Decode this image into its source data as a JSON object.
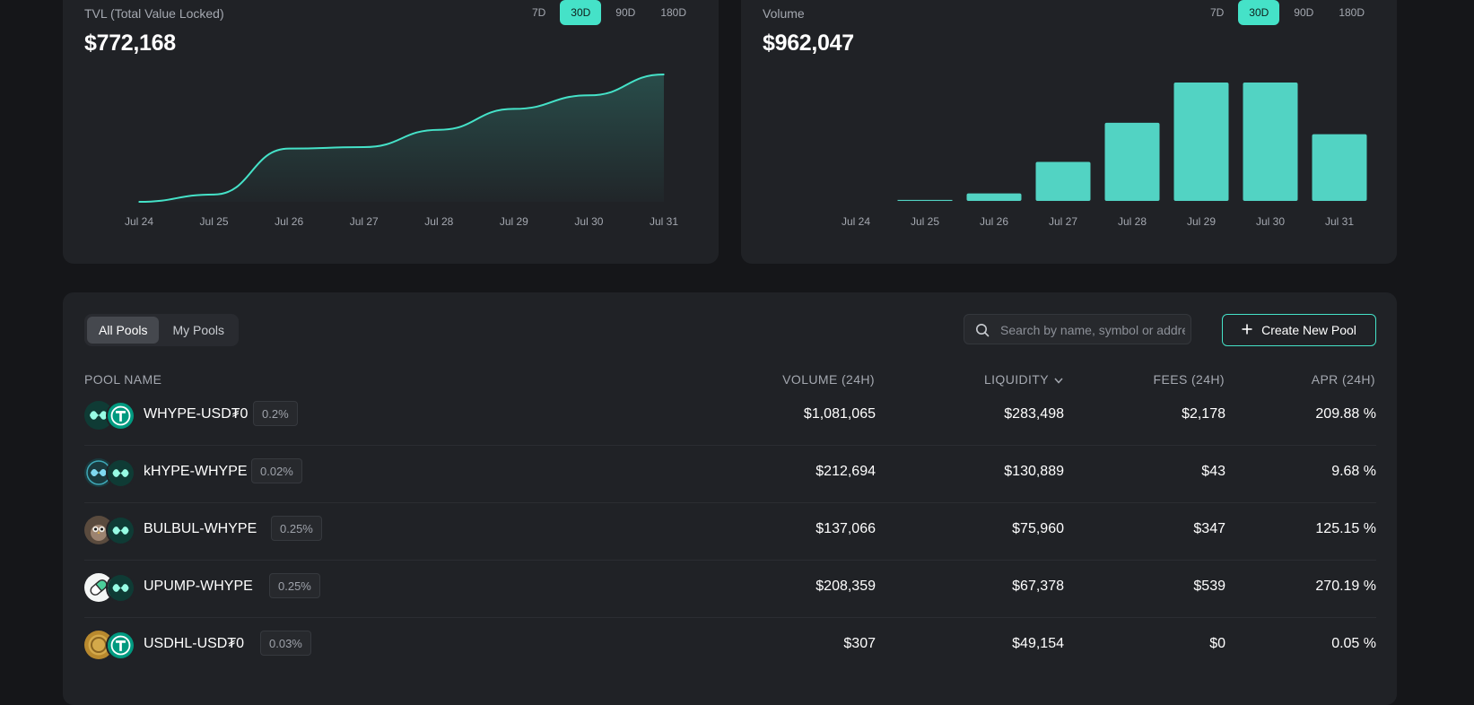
{
  "range_options": [
    "7D",
    "30D",
    "90D",
    "180D"
  ],
  "tvl": {
    "title": "TVL (Total Value Locked)",
    "value": "$772,168",
    "selected_range": "30D"
  },
  "volume": {
    "title": "Volume",
    "value": "$962,047",
    "selected_range": "30D"
  },
  "chart_data": [
    {
      "type": "area",
      "title": "TVL (Total Value Locked)",
      "x": [
        "Jul 24",
        "Jul 25",
        "Jul 26",
        "Jul 27",
        "Jul 28",
        "Jul 29",
        "Jul 30",
        "Jul 31"
      ],
      "y": [
        0,
        35000,
        255000,
        262000,
        345000,
        445000,
        510000,
        610000
      ],
      "ylim": [
        0,
        610000
      ],
      "grid": false,
      "color": "#45e2c8"
    },
    {
      "type": "bar",
      "title": "Volume",
      "categories": [
        "Jul 24",
        "Jul 25",
        "Jul 26",
        "Jul 27",
        "Jul 28",
        "Jul 29",
        "Jul 30",
        "Jul 31"
      ],
      "values": [
        0,
        8000,
        60000,
        310000,
        620000,
        940000,
        940000,
        530000
      ],
      "ylim": [
        0,
        940000
      ],
      "grid": false,
      "color": "#52d3c3"
    }
  ],
  "pools": {
    "tabs": [
      {
        "label": "All Pools",
        "active": true
      },
      {
        "label": "My Pools",
        "active": false
      }
    ],
    "search_placeholder": "Search by name, symbol or address",
    "create_label": "Create New Pool",
    "columns": {
      "name": "POOL NAME",
      "volume": "VOLUME (24H)",
      "liquidity": "LIQUIDITY",
      "fees": "FEES (24H)",
      "apr": "APR (24H)"
    },
    "rows": [
      {
        "name": "WHYPE-USD₮0",
        "fee": "0.2%",
        "volume": "$1,081,065",
        "liquidity": "$283,498",
        "fees": "$2,178",
        "apr": "209.88 %",
        "icon_a": "hype-icon",
        "icon_b": "usdt0-icon"
      },
      {
        "name": "kHYPE-WHYPE",
        "fee": "0.02%",
        "volume": "$212,694",
        "liquidity": "$130,889",
        "fees": "$43",
        "apr": "9.68 %",
        "icon_a": "khype-icon",
        "icon_b": "hype-icon"
      },
      {
        "name": "BULBUL-WHYPE",
        "fee": "0.25%",
        "volume": "$137,066",
        "liquidity": "$75,960",
        "fees": "$347",
        "apr": "125.15 %",
        "icon_a": "bulbul-icon",
        "icon_b": "hype-icon"
      },
      {
        "name": "UPUMP-WHYPE",
        "fee": "0.25%",
        "volume": "$208,359",
        "liquidity": "$67,378",
        "fees": "$539",
        "apr": "270.19 %",
        "icon_a": "upump-icon",
        "icon_b": "hype-icon"
      },
      {
        "name": "USDHL-USD₮0",
        "fee": "0.03%",
        "volume": "$307",
        "liquidity": "$49,154",
        "fees": "$0",
        "apr": "0.05 %",
        "icon_a": "usdhl-icon",
        "icon_b": "usdt0-icon"
      }
    ]
  }
}
